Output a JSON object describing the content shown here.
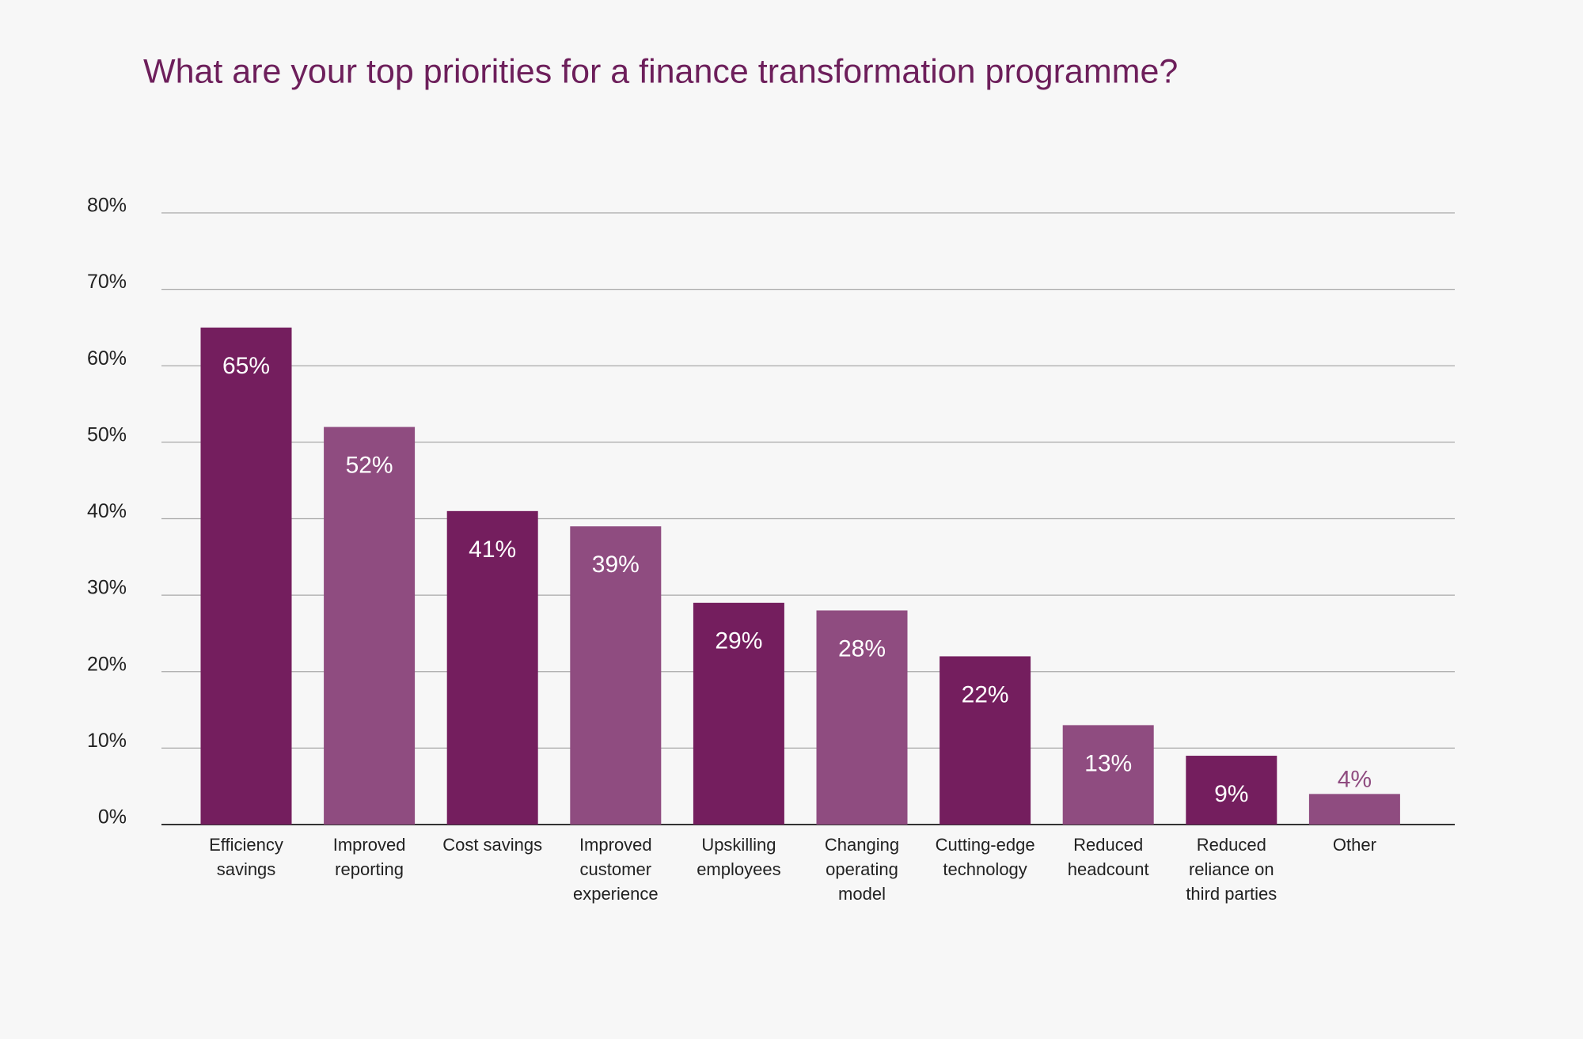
{
  "chart_data": {
    "type": "bar",
    "title": "What are your top priorities for a finance transformation programme?",
    "categories": [
      "Efficiency savings",
      "Improved reporting",
      "Cost savings",
      "Improved customer experience",
      "Upskilling employees",
      "Changing operating model",
      "Cutting-edge technology",
      "Reduced headcount",
      "Reduced reliance on third parties",
      "Other"
    ],
    "values": [
      65,
      52,
      41,
      39,
      29,
      28,
      22,
      13,
      9,
      4
    ],
    "value_labels": [
      "65%",
      "52%",
      "41%",
      "39%",
      "29%",
      "28%",
      "22%",
      "13%",
      "9%",
      "4%"
    ],
    "colors": [
      "#741e5e",
      "#8f4c80",
      "#741e5e",
      "#8f4c80",
      "#741e5e",
      "#8f4c80",
      "#741e5e",
      "#8f4c80",
      "#741e5e",
      "#8f4c80"
    ],
    "ylim": [
      0,
      80
    ],
    "yticks": [
      {
        "value": 0,
        "label": "0%"
      },
      {
        "value": 10,
        "label": "10%"
      },
      {
        "value": 20,
        "label": "20%"
      },
      {
        "value": 30,
        "label": "30%"
      },
      {
        "value": 40,
        "label": "40%"
      },
      {
        "value": 50,
        "label": "50%"
      },
      {
        "value": 60,
        "label": "60%"
      },
      {
        "value": 70,
        "label": "70%"
      },
      {
        "value": 80,
        "label": "80%"
      }
    ],
    "grid": true
  }
}
